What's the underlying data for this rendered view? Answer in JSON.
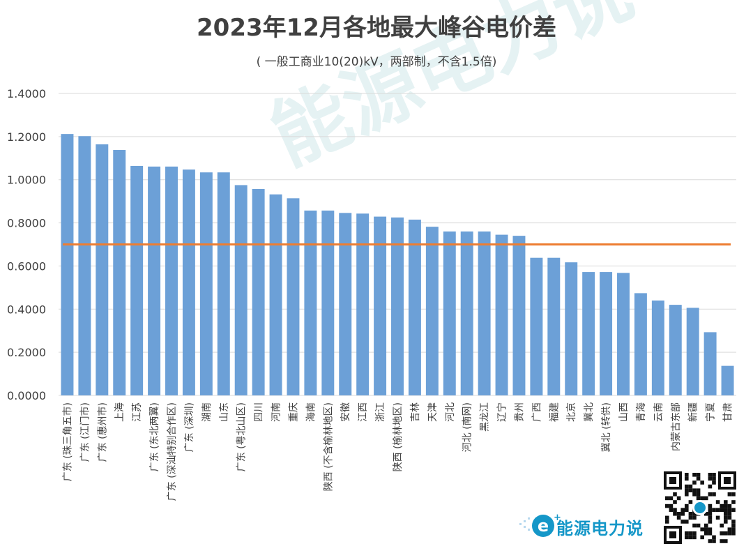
{
  "title": "2023年12月各地最大峰谷电价差",
  "subtitle": "( 一般工商业10(20)kV，两部制，不含1.5倍)",
  "brand": {
    "name": "能源电力说",
    "logo_icon": "e-plus-logo-icon",
    "qr_icon": "qr-code-icon",
    "watermark": "能源电力说"
  },
  "colors": {
    "bar": "#6ca0d7",
    "reference_line": "#ed7d31",
    "grid": "#d9d9d9",
    "text": "#404040",
    "brand": "#1597c8"
  },
  "chart_data": {
    "type": "bar",
    "title": "2023年12月各地最大峰谷电价差",
    "subtitle": "( 一般工商业10(20)kV，两部制，不含1.5倍)",
    "xlabel": "",
    "ylabel": "",
    "ylim": [
      0,
      1.4
    ],
    "yticks": [
      0,
      0.2,
      0.4,
      0.6,
      0.8,
      1.0,
      1.2,
      1.4
    ],
    "ytick_labels": [
      "0.0000",
      "0.2000",
      "0.4000",
      "0.6000",
      "0.8000",
      "1.0000",
      "1.2000",
      "1.4000"
    ],
    "grid": true,
    "legend": "none",
    "categories": [
      "广东 (珠三角五市)",
      "广东 (江门市)",
      "广东 (惠州市)",
      "上海",
      "江苏",
      "广东 (东北两翼)",
      "广东 (深汕特别合作区)",
      "广东 (深圳)",
      "湖南",
      "山东",
      "广东 (粤北山区)",
      "四川",
      "河南",
      "重庆",
      "海南",
      "陕西 (不含榆林地区)",
      "安徽",
      "江西",
      "浙江",
      "陕西 (榆林地区)",
      "吉林",
      "天津",
      "河北",
      "河北 (南网)",
      "黑龙江",
      "辽宁",
      "贵州",
      "广西",
      "福建",
      "北京",
      "冀北",
      "冀北 (转供)",
      "山西",
      "青海",
      "云南",
      "内蒙古东部",
      "新疆",
      "宁夏",
      "甘肃"
    ],
    "values": [
      1.212,
      1.202,
      1.164,
      1.138,
      1.064,
      1.061,
      1.061,
      1.047,
      1.034,
      1.034,
      0.975,
      0.957,
      0.932,
      0.914,
      0.857,
      0.857,
      0.846,
      0.843,
      0.829,
      0.825,
      0.815,
      0.782,
      0.76,
      0.76,
      0.76,
      0.745,
      0.74,
      0.638,
      0.638,
      0.617,
      0.572,
      0.572,
      0.568,
      0.474,
      0.44,
      0.42,
      0.406,
      0.293,
      0.137
    ],
    "reference_line": {
      "y": 0.7
    }
  }
}
